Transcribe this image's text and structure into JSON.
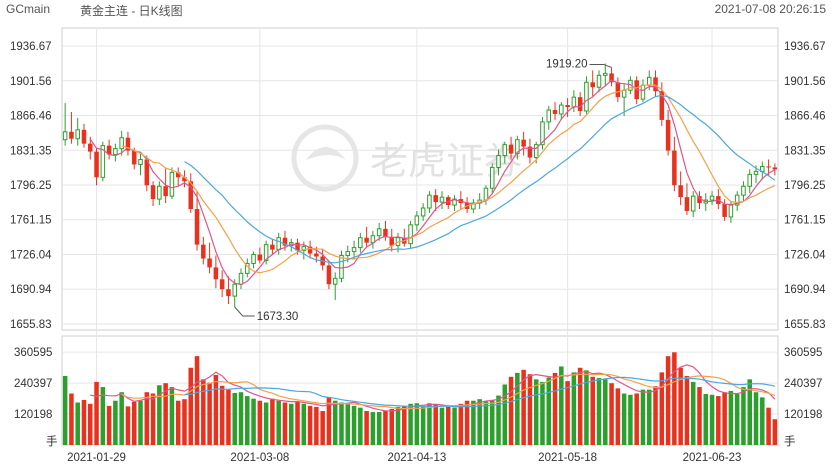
{
  "header": {
    "symbol": "GCmain",
    "title": "黄金主连 - 日K线图",
    "datetime": "2021-07-08 20:26:15"
  },
  "watermark": {
    "text": "老虎证券"
  },
  "colors": {
    "up": "#2ca02c",
    "down": "#e8321e",
    "ma5": "#e0568a",
    "ma10": "#f5a04a",
    "ma20": "#4aa8e0",
    "grid": "#e6e6e6",
    "border": "#cfcfcf"
  },
  "chart_data": {
    "type": "candlestick",
    "price_axis": {
      "ticks": [
        "1936.67",
        "1901.56",
        "1866.46",
        "1831.35",
        "1796.25",
        "1761.15",
        "1726.04",
        "1690.94",
        "1655.83"
      ],
      "range": [
        1655.83,
        1936.67
      ]
    },
    "volume_axis": {
      "ticks": [
        "360595",
        "240397",
        "120198"
      ],
      "unit": "手",
      "range": [
        0,
        400000
      ]
    },
    "x_axis": {
      "labels": [
        "2021-01-29",
        "2021-03-08",
        "2021-04-13",
        "2021-05-18",
        "2021-06-23"
      ],
      "label_index": [
        5,
        31,
        56,
        80,
        103
      ]
    },
    "annotations": [
      {
        "text": "1919.20",
        "kind": "high",
        "index": 87
      },
      {
        "text": "1673.30",
        "kind": "low",
        "index": 27
      }
    ],
    "series_keys": [
      "o",
      "h",
      "l",
      "c",
      "v"
    ],
    "candles": [
      [
        1842,
        1879,
        1836,
        1850,
        268000
      ],
      [
        1850,
        1870,
        1838,
        1843,
        200000
      ],
      [
        1843,
        1864,
        1836,
        1852,
        165000
      ],
      [
        1852,
        1858,
        1834,
        1838,
        175000
      ],
      [
        1838,
        1845,
        1822,
        1830,
        160000
      ],
      [
        1830,
        1834,
        1796,
        1804,
        245000
      ],
      [
        1804,
        1840,
        1800,
        1836,
        225000
      ],
      [
        1836,
        1842,
        1822,
        1827,
        152000
      ],
      [
        1827,
        1838,
        1820,
        1833,
        172000
      ],
      [
        1833,
        1851,
        1826,
        1844,
        205000
      ],
      [
        1844,
        1850,
        1826,
        1831,
        150000
      ],
      [
        1831,
        1834,
        1812,
        1817,
        168000
      ],
      [
        1817,
        1828,
        1806,
        1822,
        172000
      ],
      [
        1822,
        1826,
        1790,
        1796,
        205000
      ],
      [
        1796,
        1800,
        1775,
        1782,
        200000
      ],
      [
        1782,
        1800,
        1776,
        1795,
        232000
      ],
      [
        1795,
        1814,
        1778,
        1785,
        240000
      ],
      [
        1785,
        1814,
        1782,
        1809,
        225000
      ],
      [
        1809,
        1814,
        1795,
        1804,
        172000
      ],
      [
        1804,
        1811,
        1794,
        1800,
        178000
      ],
      [
        1800,
        1808,
        1768,
        1772,
        300000
      ],
      [
        1772,
        1790,
        1730,
        1736,
        345000
      ],
      [
        1736,
        1744,
        1716,
        1722,
        255000
      ],
      [
        1722,
        1738,
        1707,
        1713,
        242000
      ],
      [
        1713,
        1725,
        1692,
        1701,
        272000
      ],
      [
        1701,
        1710,
        1683,
        1691,
        230000
      ],
      [
        1691,
        1704,
        1676,
        1684,
        215000
      ],
      [
        1684,
        1701,
        1673,
        1696,
        202000
      ],
      [
        1696,
        1712,
        1691,
        1707,
        205000
      ],
      [
        1707,
        1722,
        1703,
        1717,
        190000
      ],
      [
        1717,
        1729,
        1712,
        1726,
        180000
      ],
      [
        1726,
        1733,
        1717,
        1720,
        172000
      ],
      [
        1720,
        1740,
        1716,
        1736,
        165000
      ],
      [
        1736,
        1742,
        1726,
        1731,
        180000
      ],
      [
        1731,
        1748,
        1726,
        1743,
        172000
      ],
      [
        1743,
        1750,
        1730,
        1735,
        165000
      ],
      [
        1735,
        1742,
        1729,
        1738,
        160000
      ],
      [
        1738,
        1742,
        1726,
        1730,
        168000
      ],
      [
        1730,
        1739,
        1721,
        1734,
        160000
      ],
      [
        1734,
        1740,
        1722,
        1727,
        152000
      ],
      [
        1727,
        1734,
        1718,
        1724,
        148000
      ],
      [
        1724,
        1732,
        1710,
        1715,
        132000
      ],
      [
        1715,
        1720,
        1691,
        1696,
        185000
      ],
      [
        1696,
        1708,
        1680,
        1702,
        172000
      ],
      [
        1702,
        1730,
        1698,
        1725,
        165000
      ],
      [
        1725,
        1735,
        1718,
        1729,
        158000
      ],
      [
        1729,
        1740,
        1722,
        1733,
        152000
      ],
      [
        1733,
        1748,
        1728,
        1743,
        145000
      ],
      [
        1743,
        1754,
        1734,
        1738,
        132000
      ],
      [
        1738,
        1750,
        1732,
        1745,
        128000
      ],
      [
        1745,
        1758,
        1740,
        1752,
        128000
      ],
      [
        1752,
        1760,
        1740,
        1744,
        132000
      ],
      [
        1744,
        1752,
        1729,
        1735,
        140000
      ],
      [
        1735,
        1748,
        1728,
        1743,
        148000
      ],
      [
        1743,
        1752,
        1734,
        1737,
        152000
      ],
      [
        1737,
        1760,
        1732,
        1756,
        160000
      ],
      [
        1756,
        1770,
        1750,
        1765,
        162000
      ],
      [
        1765,
        1778,
        1760,
        1773,
        150000
      ],
      [
        1773,
        1790,
        1768,
        1786,
        162000
      ],
      [
        1786,
        1792,
        1770,
        1779,
        158000
      ],
      [
        1779,
        1790,
        1772,
        1784,
        145000
      ],
      [
        1784,
        1786,
        1772,
        1776,
        148000
      ],
      [
        1776,
        1786,
        1770,
        1782,
        145000
      ],
      [
        1782,
        1790,
        1772,
        1778,
        160000
      ],
      [
        1778,
        1784,
        1768,
        1772,
        172000
      ],
      [
        1772,
        1782,
        1768,
        1778,
        172000
      ],
      [
        1778,
        1788,
        1772,
        1781,
        178000
      ],
      [
        1781,
        1796,
        1776,
        1793,
        170000
      ],
      [
        1793,
        1818,
        1788,
        1814,
        175000
      ],
      [
        1814,
        1832,
        1806,
        1826,
        192000
      ],
      [
        1826,
        1840,
        1818,
        1837,
        235000
      ],
      [
        1837,
        1845,
        1822,
        1828,
        265000
      ],
      [
        1828,
        1846,
        1822,
        1842,
        280000
      ],
      [
        1842,
        1850,
        1826,
        1835,
        292000
      ],
      [
        1835,
        1843,
        1818,
        1824,
        275000
      ],
      [
        1824,
        1840,
        1818,
        1837,
        255000
      ],
      [
        1837,
        1865,
        1832,
        1860,
        245000
      ],
      [
        1860,
        1876,
        1852,
        1872,
        262000
      ],
      [
        1872,
        1880,
        1862,
        1868,
        280000
      ],
      [
        1868,
        1880,
        1862,
        1877,
        305000
      ],
      [
        1877,
        1884,
        1865,
        1875,
        248000
      ],
      [
        1875,
        1892,
        1870,
        1885,
        282000
      ],
      [
        1885,
        1890,
        1866,
        1871,
        300000
      ],
      [
        1871,
        1906,
        1868,
        1900,
        290000
      ],
      [
        1900,
        1912,
        1886,
        1895,
        265000
      ],
      [
        1895,
        1912,
        1890,
        1907,
        260000
      ],
      [
        1907,
        1919,
        1896,
        1909,
        255000
      ],
      [
        1909,
        1915,
        1896,
        1900,
        240000
      ],
      [
        1900,
        1905,
        1880,
        1885,
        220000
      ],
      [
        1885,
        1898,
        1866,
        1892,
        200000
      ],
      [
        1892,
        1906,
        1888,
        1902,
        195000
      ],
      [
        1902,
        1906,
        1878,
        1883,
        200000
      ],
      [
        1883,
        1903,
        1880,
        1897,
        215000
      ],
      [
        1897,
        1912,
        1892,
        1905,
        215000
      ],
      [
        1905,
        1912,
        1886,
        1891,
        228000
      ],
      [
        1891,
        1900,
        1856,
        1862,
        282000
      ],
      [
        1862,
        1872,
        1826,
        1831,
        345000
      ],
      [
        1831,
        1845,
        1790,
        1796,
        360000
      ],
      [
        1796,
        1810,
        1776,
        1784,
        300000
      ],
      [
        1784,
        1798,
        1766,
        1770,
        268000
      ],
      [
        1770,
        1790,
        1764,
        1785,
        245000
      ],
      [
        1785,
        1790,
        1772,
        1778,
        225000
      ],
      [
        1778,
        1788,
        1770,
        1781,
        198000
      ],
      [
        1781,
        1790,
        1776,
        1785,
        195000
      ],
      [
        1785,
        1792,
        1772,
        1777,
        190000
      ],
      [
        1777,
        1782,
        1760,
        1764,
        205000
      ],
      [
        1764,
        1780,
        1758,
        1776,
        210000
      ],
      [
        1776,
        1790,
        1770,
        1786,
        198000
      ],
      [
        1786,
        1800,
        1780,
        1795,
        225000
      ],
      [
        1795,
        1812,
        1788,
        1807,
        255000
      ],
      [
        1807,
        1816,
        1798,
        1810,
        205000
      ],
      [
        1810,
        1820,
        1802,
        1815,
        185000
      ],
      [
        1815,
        1822,
        1805,
        1814,
        145000
      ],
      [
        1814,
        1818,
        1806,
        1812,
        100000
      ]
    ]
  }
}
